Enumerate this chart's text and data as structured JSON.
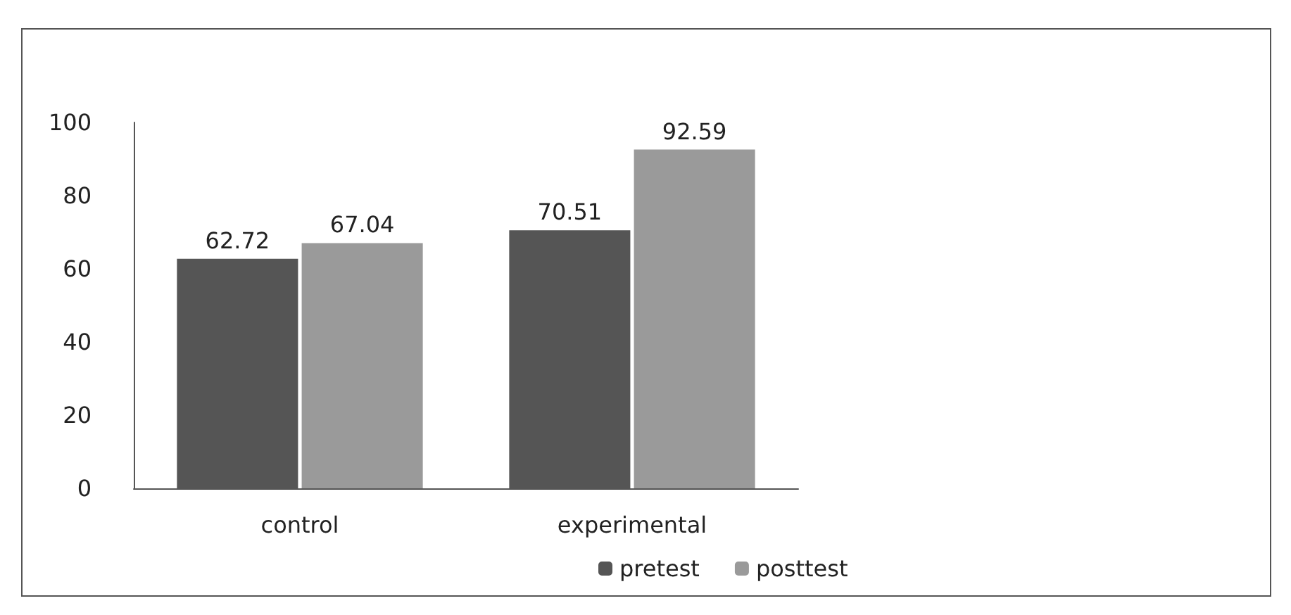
{
  "chart_data": {
    "type": "bar",
    "categories": [
      "control",
      "experimental"
    ],
    "series": [
      {
        "name": "pretest",
        "color": "#555555",
        "values": [
          62.72,
          70.51
        ]
      },
      {
        "name": "posttest",
        "color": "#9a9a9a",
        "values": [
          67.04,
          92.59
        ]
      }
    ],
    "ylim": [
      0,
      100
    ],
    "yticks": [
      0,
      20,
      40,
      60,
      80,
      100
    ],
    "grid": false,
    "legend": "bottom",
    "data_labels": true
  }
}
